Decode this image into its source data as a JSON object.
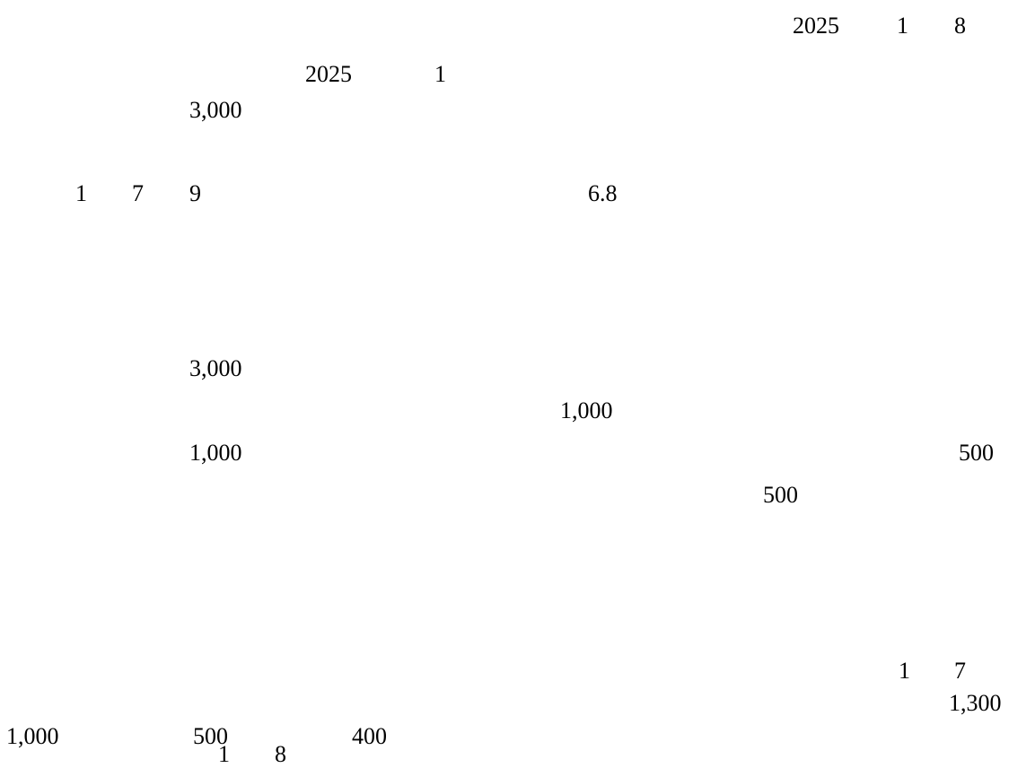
{
  "date_line": {
    "year": "2025",
    "month": "1",
    "day": "8"
  },
  "line_2": {
    "year": "2025",
    "month": "1"
  },
  "line_3": {
    "amount": "3,000"
  },
  "line_4": {
    "n1": "1",
    "n2": "7",
    "n3": "9",
    "value": "6.8"
  },
  "line_5": {
    "amount": "3,000"
  },
  "line_6": {
    "amount": "1,000"
  },
  "line_7": {
    "amount_left": "1,000",
    "amount_right": "500"
  },
  "line_8": {
    "amount": "500"
  },
  "line_9": {
    "n1": "1",
    "n2": "7"
  },
  "line_10": {
    "amount": "1,300"
  },
  "line_11": {
    "a": "1,000",
    "b": "500",
    "c": "400"
  },
  "line_12": {
    "n1": "1",
    "n2": "8"
  }
}
